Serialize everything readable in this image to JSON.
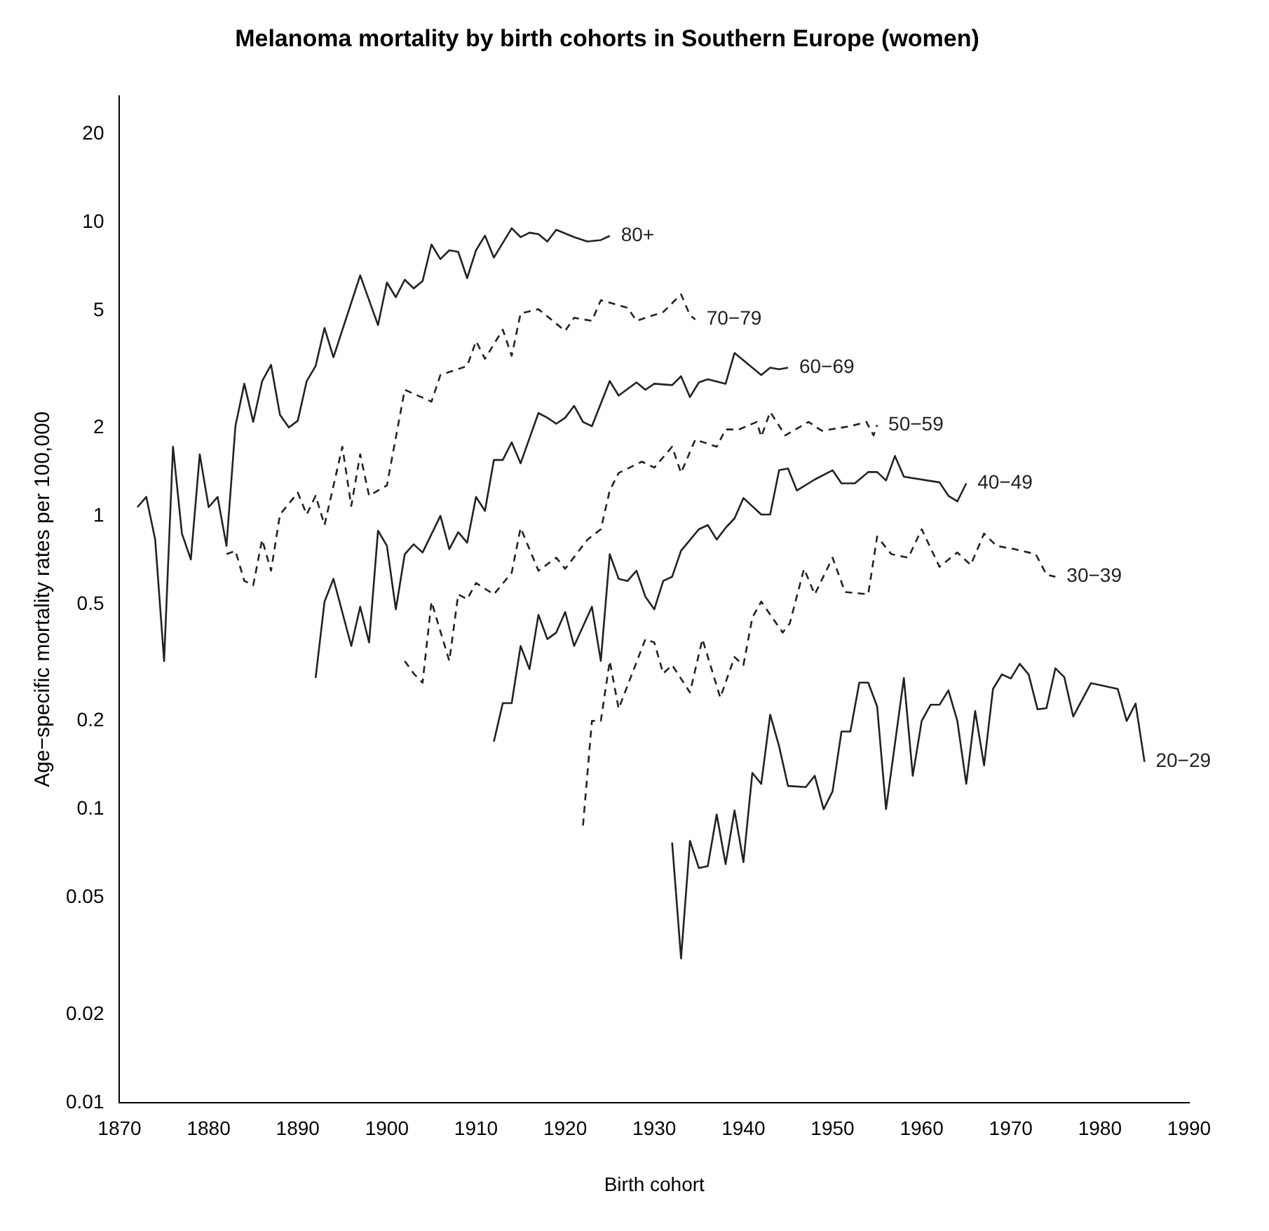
{
  "chart_data": {
    "type": "line",
    "title": "Melanoma mortality by birth cohorts in Southern Europe (women)",
    "xlabel": "Birth cohort",
    "ylabel": "Age−specific mortality rates per 100,000",
    "log": "y",
    "marker": "none",
    "xlim": [
      1870,
      1990
    ],
    "xticks": [
      1870,
      1880,
      1890,
      1900,
      1910,
      1920,
      1930,
      1940,
      1950,
      1960,
      1970,
      1980,
      1990
    ],
    "ylim": [
      0.01,
      27
    ],
    "yticks": [
      0.01,
      0.02,
      0.05,
      0.1,
      0.2,
      0.5,
      1,
      2,
      5,
      10,
      20
    ],
    "series": [
      {
        "name": "80+",
        "color": "#222222",
        "line_style": "solid",
        "x": [
          1872,
          1873,
          1874,
          1875,
          1876,
          1877,
          1878,
          1879,
          1880,
          1881,
          1882,
          1883,
          1884,
          1885,
          1886,
          1887,
          1888,
          1889,
          1890,
          1891,
          1892,
          1893,
          1894,
          1897,
          1899,
          1900,
          1901,
          1902,
          1903,
          1904,
          1905,
          1906,
          1907,
          1908,
          1909,
          1910,
          1911,
          1912,
          1914,
          1915,
          1916,
          1917,
          1918,
          1919,
          1921,
          1922.5,
          1924,
          1925
        ],
        "values": [
          1.07,
          1.16,
          0.83,
          0.32,
          1.72,
          0.87,
          0.71,
          1.62,
          1.07,
          1.16,
          0.79,
          2.02,
          2.82,
          2.09,
          2.88,
          3.27,
          2.21,
          2.0,
          2.11,
          2.88,
          3.24,
          4.37,
          3.47,
          6.6,
          4.47,
          6.24,
          5.56,
          6.38,
          5.96,
          6.31,
          8.41,
          7.5,
          8.04,
          7.94,
          6.46,
          8.04,
          9.02,
          7.59,
          9.55,
          8.91,
          9.23,
          9.12,
          8.61,
          9.44,
          8.91,
          8.61,
          8.71,
          9.0
        ]
      },
      {
        "name": "70−79",
        "color": "#222222",
        "line_style": "dashed",
        "x": [
          1882,
          1883,
          1884,
          1885,
          1886,
          1887,
          1888,
          1890,
          1891,
          1892,
          1893,
          1895,
          1896,
          1897,
          1898,
          1900,
          1902,
          1905,
          1906,
          1909,
          1910,
          1911,
          1913,
          1914,
          1915,
          1917,
          1920,
          1921,
          1923,
          1924,
          1927,
          1928,
          1931,
          1933,
          1934,
          1934.6
        ],
        "values": [
          0.74,
          0.76,
          0.6,
          0.58,
          0.83,
          0.65,
          1.01,
          1.2,
          1.01,
          1.17,
          0.93,
          1.72,
          1.08,
          1.62,
          1.17,
          1.27,
          2.69,
          2.45,
          3.02,
          3.24,
          3.94,
          3.43,
          4.31,
          3.51,
          4.9,
          5.06,
          4.27,
          4.73,
          4.62,
          5.43,
          5.12,
          4.62,
          4.95,
          5.69,
          4.83,
          4.67
        ]
      },
      {
        "name": "60−69",
        "color": "#222222",
        "line_style": "solid",
        "x": [
          1892,
          1893,
          1894,
          1896,
          1897,
          1898,
          1899,
          1900,
          1901,
          1902,
          1903,
          1904,
          1906,
          1907,
          1908,
          1909,
          1910,
          1911,
          1912,
          1913,
          1914,
          1915,
          1917,
          1918,
          1919,
          1920,
          1921,
          1922,
          1923,
          1925,
          1926,
          1928,
          1929,
          1930,
          1932,
          1933,
          1934,
          1935,
          1936,
          1938,
          1939,
          1942,
          1943,
          1944,
          1945
        ],
        "values": [
          0.28,
          0.51,
          0.61,
          0.36,
          0.49,
          0.37,
          0.89,
          0.79,
          0.48,
          0.74,
          0.8,
          0.75,
          1.0,
          0.77,
          0.88,
          0.81,
          1.16,
          1.04,
          1.55,
          1.55,
          1.78,
          1.51,
          2.24,
          2.16,
          2.06,
          2.16,
          2.37,
          2.09,
          2.02,
          2.88,
          2.57,
          2.85,
          2.69,
          2.82,
          2.79,
          2.99,
          2.54,
          2.85,
          2.92,
          2.82,
          3.59,
          3.02,
          3.2,
          3.16,
          3.2
        ]
      },
      {
        "name": "50−59",
        "color": "#222222",
        "line_style": "dashed",
        "x": [
          1902,
          1903,
          1904,
          1905,
          1907,
          1908,
          1909,
          1910,
          1912,
          1914,
          1915,
          1917,
          1919,
          1920,
          1922.5,
          1924,
          1925,
          1926,
          1928.6,
          1930,
          1932,
          1933,
          1934.6,
          1937,
          1938,
          1939.5,
          1941.5,
          1942,
          1943,
          1944.7,
          1947.3,
          1948.8,
          1952,
          1953.8,
          1954.6,
          1955
        ],
        "values": [
          0.32,
          0.29,
          0.27,
          0.51,
          0.32,
          0.54,
          0.52,
          0.59,
          0.54,
          0.64,
          0.91,
          0.65,
          0.72,
          0.66,
          0.83,
          0.9,
          1.22,
          1.4,
          1.53,
          1.46,
          1.72,
          1.4,
          1.82,
          1.72,
          1.97,
          1.97,
          2.09,
          1.86,
          2.26,
          1.88,
          2.09,
          1.95,
          2.02,
          2.09,
          1.88,
          2.04
        ]
      },
      {
        "name": "40−49",
        "color": "#222222",
        "line_style": "solid",
        "x": [
          1912,
          1913,
          1914,
          1915,
          1916,
          1917,
          1918,
          1919,
          1920,
          1921,
          1923,
          1924,
          1925,
          1926,
          1927,
          1928,
          1929,
          1930,
          1931,
          1932,
          1933,
          1935,
          1936,
          1937,
          1938,
          1939,
          1940,
          1942,
          1943,
          1944,
          1945,
          1946,
          1948,
          1950,
          1951,
          1952.5,
          1954,
          1955,
          1956,
          1957,
          1958,
          1962,
          1963,
          1964,
          1965
        ],
        "values": [
          0.17,
          0.23,
          0.23,
          0.36,
          0.3,
          0.46,
          0.38,
          0.4,
          0.47,
          0.36,
          0.49,
          0.32,
          0.74,
          0.61,
          0.6,
          0.65,
          0.53,
          0.48,
          0.6,
          0.62,
          0.76,
          0.9,
          0.93,
          0.83,
          0.91,
          0.98,
          1.15,
          1.01,
          1.01,
          1.43,
          1.45,
          1.22,
          1.33,
          1.43,
          1.29,
          1.29,
          1.41,
          1.41,
          1.32,
          1.6,
          1.36,
          1.3,
          1.17,
          1.12,
          1.29
        ]
      },
      {
        "name": "30−39",
        "color": "#222222",
        "line_style": "dashed",
        "x": [
          1922,
          1923,
          1924,
          1925,
          1926,
          1929,
          1930,
          1931,
          1932,
          1934,
          1935.4,
          1937.4,
          1939,
          1940,
          1941,
          1942,
          1944.4,
          1945.2,
          1946.8,
          1948,
          1950,
          1951.4,
          1954,
          1955,
          1956.6,
          1958.5,
          1960,
          1962,
          1964,
          1965.5,
          1967,
          1968.4,
          1970.4,
          1972.8,
          1974,
          1975
        ],
        "values": [
          0.088,
          0.2,
          0.2,
          0.32,
          0.22,
          0.38,
          0.37,
          0.29,
          0.31,
          0.25,
          0.38,
          0.24,
          0.33,
          0.31,
          0.45,
          0.51,
          0.4,
          0.43,
          0.66,
          0.54,
          0.72,
          0.55,
          0.54,
          0.85,
          0.74,
          0.72,
          0.9,
          0.67,
          0.75,
          0.68,
          0.87,
          0.79,
          0.77,
          0.74,
          0.63,
          0.62
        ]
      },
      {
        "name": "20−29",
        "color": "#222222",
        "line_style": "solid",
        "x": [
          1932,
          1933,
          1934,
          1935,
          1936,
          1937,
          1938,
          1939,
          1940,
          1941,
          1942,
          1943,
          1944,
          1945,
          1947,
          1948,
          1949,
          1950,
          1951,
          1952,
          1953,
          1954,
          1955,
          1956,
          1958,
          1959,
          1960,
          1961,
          1962,
          1963,
          1964,
          1965,
          1966,
          1967,
          1968,
          1969,
          1970,
          1971,
          1972,
          1973,
          1974,
          1975,
          1976,
          1977,
          1979,
          1982,
          1983,
          1984,
          1985
        ],
        "values": [
          0.077,
          0.031,
          0.078,
          0.063,
          0.064,
          0.096,
          0.065,
          0.099,
          0.066,
          0.133,
          0.122,
          0.21,
          0.164,
          0.12,
          0.119,
          0.13,
          0.1,
          0.115,
          0.184,
          0.184,
          0.27,
          0.27,
          0.224,
          0.1,
          0.28,
          0.13,
          0.2,
          0.227,
          0.227,
          0.254,
          0.2,
          0.122,
          0.216,
          0.141,
          0.257,
          0.288,
          0.279,
          0.313,
          0.288,
          0.219,
          0.221,
          0.302,
          0.282,
          0.207,
          0.269,
          0.257,
          0.2,
          0.229,
          0.145
        ]
      }
    ]
  }
}
